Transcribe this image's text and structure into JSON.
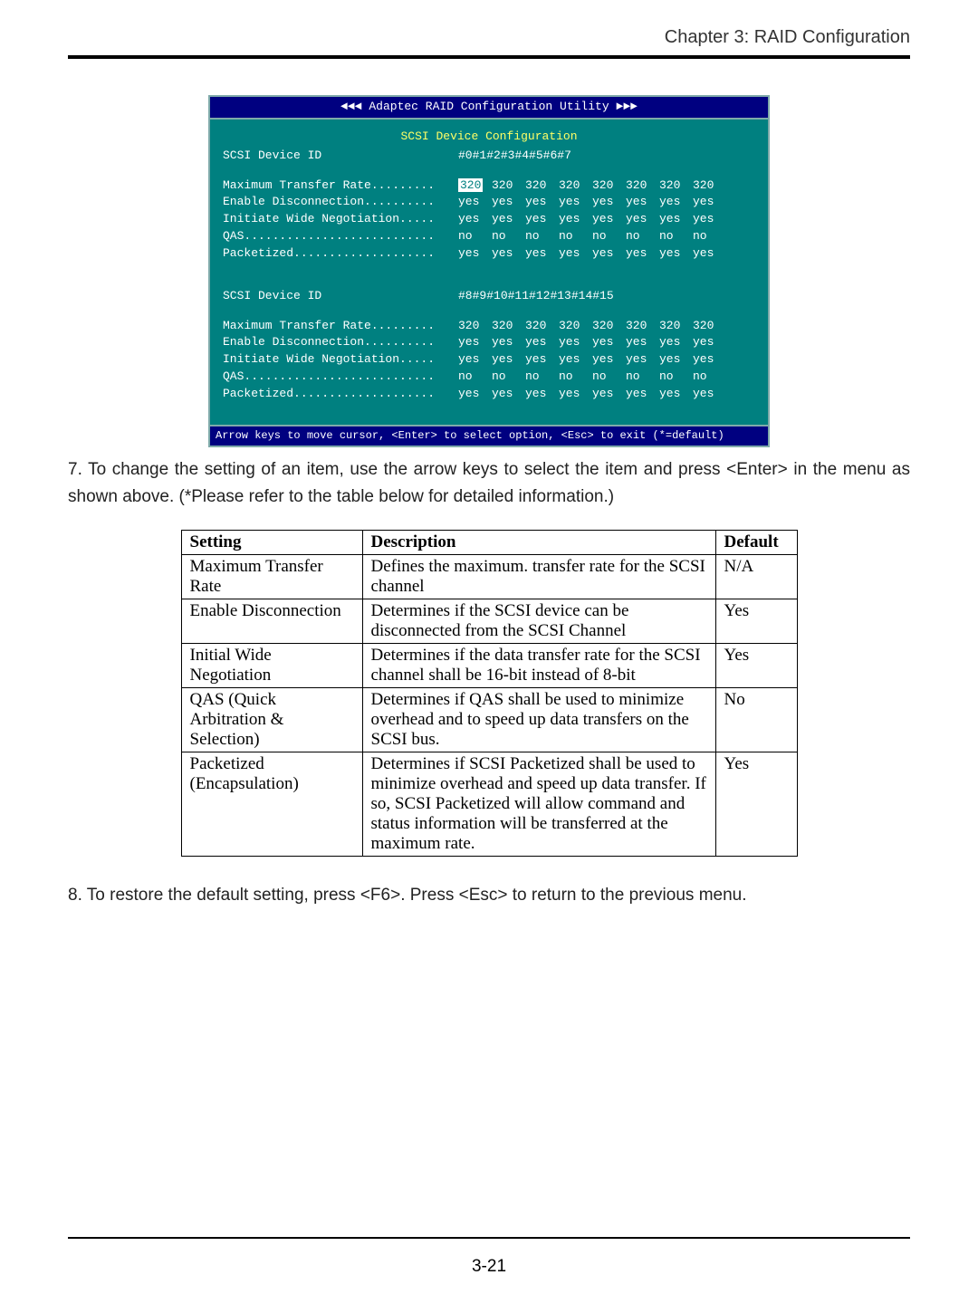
{
  "chapter_header": "Chapter 3:  RAID Configuration",
  "page_number": "3-21",
  "terminal": {
    "title": "◄◄◄ Adaptec RAID Configuration Utility ►►►",
    "section_label": "SCSI Device Configuration",
    "footer": "Arrow keys to move cursor, <Enter> to select option, <Esc> to exit (*=default)",
    "header1_label": "SCSI Device ID",
    "header1_cols": [
      "#0",
      "#1",
      "#2",
      "#3",
      "#4",
      "#5",
      "#6",
      "#7"
    ],
    "rows1": [
      {
        "label": "Maximum Transfer Rate.........",
        "vals": [
          "320",
          "320",
          "320",
          "320",
          "320",
          "320",
          "320",
          "320"
        ],
        "sel": true
      },
      {
        "label": "Enable Disconnection..........",
        "vals": [
          "yes",
          "yes",
          "yes",
          "yes",
          "yes",
          "yes",
          "yes",
          "yes"
        ]
      },
      {
        "label": "Initiate Wide Negotiation.....",
        "vals": [
          "yes",
          "yes",
          "yes",
          "yes",
          "yes",
          "yes",
          "yes",
          "yes"
        ]
      },
      {
        "label": "QAS...........................",
        "vals": [
          "no",
          "no",
          "no",
          "no",
          "no",
          "no",
          "no",
          "no"
        ]
      },
      {
        "label": "Packetized....................",
        "vals": [
          "yes",
          "yes",
          "yes",
          "yes",
          "yes",
          "yes",
          "yes",
          "yes"
        ]
      }
    ],
    "header2_label": "SCSI Device ID",
    "header2_cols": [
      "#8",
      "#9",
      "#10",
      "#11",
      "#12",
      "#13",
      "#14",
      "#15"
    ],
    "rows2": [
      {
        "label": "Maximum Transfer Rate.........",
        "vals": [
          "320",
          "320",
          "320",
          "320",
          "320",
          "320",
          "320",
          "320"
        ]
      },
      {
        "label": "Enable Disconnection..........",
        "vals": [
          "yes",
          "yes",
          "yes",
          "yes",
          "yes",
          "yes",
          "yes",
          "yes"
        ]
      },
      {
        "label": "Initiate Wide Negotiation.....",
        "vals": [
          "yes",
          "yes",
          "yes",
          "yes",
          "yes",
          "yes",
          "yes",
          "yes"
        ]
      },
      {
        "label": "QAS...........................",
        "vals": [
          "no",
          "no",
          "no",
          "no",
          "no",
          "no",
          "no",
          "no"
        ]
      },
      {
        "label": "Packetized....................",
        "vals": [
          "yes",
          "yes",
          "yes",
          "yes",
          "yes",
          "yes",
          "yes",
          "yes"
        ]
      }
    ]
  },
  "para7": "7. To change the setting of an item, use the arrow keys to select  the item and press <Enter> in the menu as shown above.  (*Please refer to the table below for detailed information.)",
  "para8": "8.  To restore the default setting, press <F6>.  Press <Esc> to return to the previous menu.",
  "settings_table": {
    "headers": [
      "Setting",
      "Description",
      "Default"
    ],
    "rows": [
      {
        "setting": "Maximum Transfer Rate",
        "desc": "Defines the maximum. transfer rate for the SCSI channel",
        "def": "N/A"
      },
      {
        "setting": "Enable Disconnection",
        "desc": "Determines if the SCSI device can be disconnected from the SCSI Channel",
        "def": "Yes"
      },
      {
        "setting": "Initial Wide Negotiation",
        "desc": "Determines if the data transfer rate for the SCSI channel shall be 16-bit instead of 8-bit",
        "def": "Yes"
      },
      {
        "setting": "QAS (Quick Arbitration & Selection)",
        "desc": "Determines if QAS shall be used to minimize overhead and to speed up data transfers on the SCSI bus.",
        "def": "No"
      },
      {
        "setting": "Packetized (Encapsulation)",
        "desc": "Determines if SCSI Packetized shall be used to minimize overhead and speed up data transfer. If so, SCSI Packetized will allow command and status information will be transferred at the maximum rate.",
        "def": "Yes"
      }
    ]
  },
  "colors": {
    "terminal_bg": "#008080",
    "terminal_titlebar": "#000080",
    "terminal_text": "#ffffff",
    "terminal_highlight_bg": "#ffffff",
    "terminal_highlight_fg": "#008080",
    "section_label": "#ffff66"
  }
}
